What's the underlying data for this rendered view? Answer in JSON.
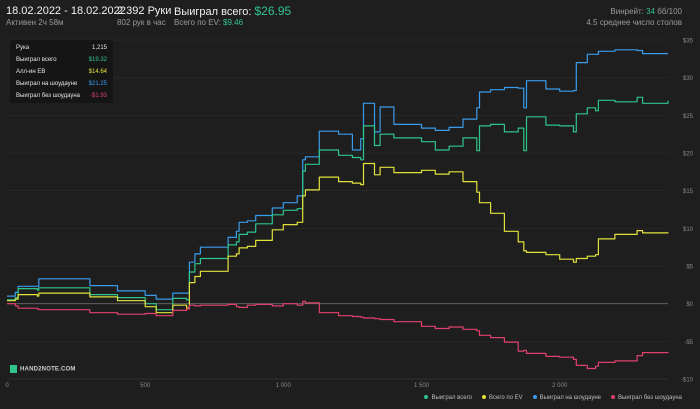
{
  "header": {
    "date_range": "18.02.2022 - 18.02.2022",
    "active": "Активен 2ч 58м",
    "hands": "2 392 Руки",
    "hands_rate": "802 рук в час",
    "won_label": "Выиграл всего:",
    "won_value": "$26.95",
    "ev_label": "Всего по EV:",
    "ev_value": "$9.46",
    "winrate_label": "Винрейт:",
    "winrate_value": "34",
    "winrate_suffix": "бб/100",
    "tables": "4.5 среднее число столов"
  },
  "tooltip": {
    "rows": [
      {
        "label": "Рука",
        "value": "1,215",
        "color": "#e6e6e6"
      },
      {
        "label": "Выиграл всего",
        "value": "$19.32",
        "color": "#2fc48a"
      },
      {
        "label": "Алл-ин EB",
        "value": "$14.64",
        "color": "#e2e23a"
      },
      {
        "label": "Выиграл на шоудауне",
        "value": "$21.25",
        "color": "#3a9bea"
      },
      {
        "label": "Выиграл без шоудауна",
        "value": "-$1.93",
        "color": "#e0416c"
      }
    ]
  },
  "logo": {
    "text": "HAND2NOTE.COM"
  },
  "legend": [
    {
      "label": "Выиграл всего",
      "color": "#2fc48a"
    },
    {
      "label": "Всего по EV",
      "color": "#e2e23a"
    },
    {
      "label": "Выиграл на шоудауне",
      "color": "#3a9bea"
    },
    {
      "label": "Выиграл без шоудауна",
      "color": "#e0416c"
    }
  ],
  "chart_data": {
    "type": "line",
    "xlim": [
      0,
      2392
    ],
    "ylim": [
      -10,
      35
    ],
    "x_ticks": [
      0,
      500,
      1000,
      1500,
      2000
    ],
    "x_tick_labels": [
      "0",
      "500",
      "1 000",
      "1 500",
      "2 000"
    ],
    "y_ticks": [
      35,
      30,
      25,
      20,
      15,
      10,
      5,
      0,
      -5,
      -10
    ],
    "y_tick_labels": [
      "$35",
      "$30",
      "$25",
      "$20",
      "$15",
      "$10",
      "$5",
      "$0",
      "-$5",
      "-$10"
    ],
    "grid": true,
    "legend_position": "bottom-right",
    "series": [
      {
        "name": "Выиграл на шоудауне",
        "color": "#3a9bea",
        "x": [
          0,
          30,
          40,
          110,
          115,
          300,
          400,
          500,
          540,
          600,
          650,
          660,
          680,
          700,
          800,
          830,
          840,
          870,
          900,
          960,
          1000,
          1050,
          1070,
          1080,
          1130,
          1200,
          1250,
          1280,
          1290,
          1330,
          1350,
          1400,
          1500,
          1550,
          1600,
          1650,
          1700,
          1710,
          1750,
          1800,
          1850,
          1870,
          1880,
          1950,
          2000,
          2050,
          2060,
          2100,
          2130,
          2140,
          2200,
          2280,
          2300,
          2392
        ],
        "y": [
          1,
          1.5,
          2.3,
          2.3,
          3.3,
          2.4,
          1.7,
          1.1,
          0.6,
          1.4,
          1.4,
          5.5,
          6.6,
          7.5,
          8.8,
          9.6,
          10.8,
          11,
          11.7,
          12.7,
          13.4,
          14.3,
          19.1,
          19.5,
          22.9,
          22.5,
          20.4,
          21.9,
          26.6,
          22.8,
          26.1,
          23.8,
          23.3,
          23.0,
          23.4,
          24.5,
          26,
          28.1,
          28.4,
          28.7,
          28.6,
          26.0,
          29.6,
          28.5,
          28.2,
          28.3,
          32.0,
          33.1,
          33.1,
          33.5,
          33.7,
          33.6,
          33.2,
          33.2
        ]
      },
      {
        "name": "Выиграл всего",
        "color": "#2fc48a",
        "x": [
          0,
          30,
          40,
          110,
          115,
          300,
          400,
          500,
          540,
          600,
          650,
          660,
          680,
          700,
          800,
          830,
          840,
          870,
          900,
          960,
          1000,
          1050,
          1070,
          1080,
          1130,
          1200,
          1250,
          1280,
          1290,
          1330,
          1350,
          1400,
          1500,
          1550,
          1600,
          1650,
          1700,
          1710,
          1750,
          1800,
          1850,
          1870,
          1880,
          1950,
          2000,
          2050,
          2060,
          2100,
          2130,
          2140,
          2200,
          2280,
          2300,
          2392
        ],
        "y": [
          0.5,
          0.8,
          2.0,
          1.8,
          2.1,
          1.2,
          0.8,
          0.0,
          -0.8,
          0.7,
          0.5,
          4.2,
          5.3,
          6.0,
          7.8,
          8.2,
          9.2,
          9.5,
          10.6,
          11.8,
          12.4,
          12.6,
          17.6,
          18.5,
          20.4,
          19.7,
          19.4,
          19.1,
          23.6,
          21.0,
          22.5,
          22.0,
          21.5,
          20.4,
          20.9,
          22.0,
          20.3,
          23.6,
          23.8,
          22.8,
          23.3,
          20.3,
          24.8,
          23.7,
          23.6,
          22.8,
          25.2,
          26.0,
          25.6,
          27.0,
          26.8,
          27.4,
          26.6,
          26.95
        ]
      },
      {
        "name": "Всего по EV",
        "color": "#e2e23a",
        "x": [
          0,
          30,
          40,
          110,
          115,
          300,
          400,
          500,
          540,
          600,
          650,
          660,
          680,
          700,
          800,
          830,
          840,
          870,
          900,
          960,
          1000,
          1050,
          1070,
          1080,
          1130,
          1200,
          1250,
          1280,
          1290,
          1330,
          1350,
          1400,
          1500,
          1550,
          1600,
          1650,
          1700,
          1710,
          1750,
          1800,
          1850,
          1870,
          1880,
          1950,
          2000,
          2050,
          2060,
          2100,
          2130,
          2140,
          2200,
          2280,
          2300,
          2392
        ],
        "y": [
          0.4,
          0.6,
          1.2,
          1.0,
          1.4,
          0.9,
          0.4,
          -0.4,
          -1.2,
          -0.2,
          -0.6,
          2.8,
          3.6,
          4.3,
          6.3,
          6.6,
          7.4,
          7.6,
          8.4,
          9.8,
          10.5,
          10.8,
          14.3,
          15.1,
          16.8,
          16.2,
          16.0,
          15.8,
          18.6,
          17.1,
          18.1,
          17.4,
          17.7,
          17.2,
          17.5,
          16.2,
          14.8,
          13.4,
          12.0,
          9.6,
          8.2,
          7.0,
          6.8,
          6.5,
          5.9,
          5.5,
          6.0,
          6.3,
          6.5,
          8.6,
          9.2,
          9.7,
          9.4,
          9.46
        ]
      },
      {
        "name": "Выиграл без шоудауна",
        "color": "#e0416c",
        "x": [
          0,
          30,
          40,
          110,
          115,
          300,
          400,
          500,
          540,
          600,
          650,
          660,
          680,
          700,
          800,
          830,
          840,
          870,
          900,
          960,
          1000,
          1050,
          1070,
          1080,
          1130,
          1200,
          1250,
          1280,
          1290,
          1330,
          1350,
          1400,
          1500,
          1550,
          1600,
          1650,
          1700,
          1710,
          1750,
          1800,
          1850,
          1870,
          1880,
          1950,
          2000,
          2050,
          2060,
          2100,
          2130,
          2140,
          2200,
          2280,
          2300,
          2392
        ],
        "y": [
          0.0,
          -0.3,
          -0.6,
          -0.7,
          -0.8,
          -1.2,
          -1.4,
          -1.3,
          -1.6,
          -0.9,
          -0.7,
          -0.2,
          -0.3,
          -0.2,
          -0.1,
          -0.4,
          -0.5,
          -0.2,
          -0.1,
          -0.3,
          0.0,
          -0.2,
          0.3,
          0.1,
          -1.2,
          -1.6,
          -1.7,
          -1.8,
          -1.9,
          -2.0,
          -2.1,
          -2.4,
          -3.0,
          -3.3,
          -3.1,
          -3.4,
          -3.6,
          -4.2,
          -4.5,
          -5.1,
          -6.3,
          -6.2,
          -6.6,
          -7.0,
          -7.1,
          -7.4,
          -8.2,
          -8.6,
          -8.3,
          -7.8,
          -7.6,
          -6.9,
          -6.5,
          -6.4
        ]
      }
    ]
  }
}
